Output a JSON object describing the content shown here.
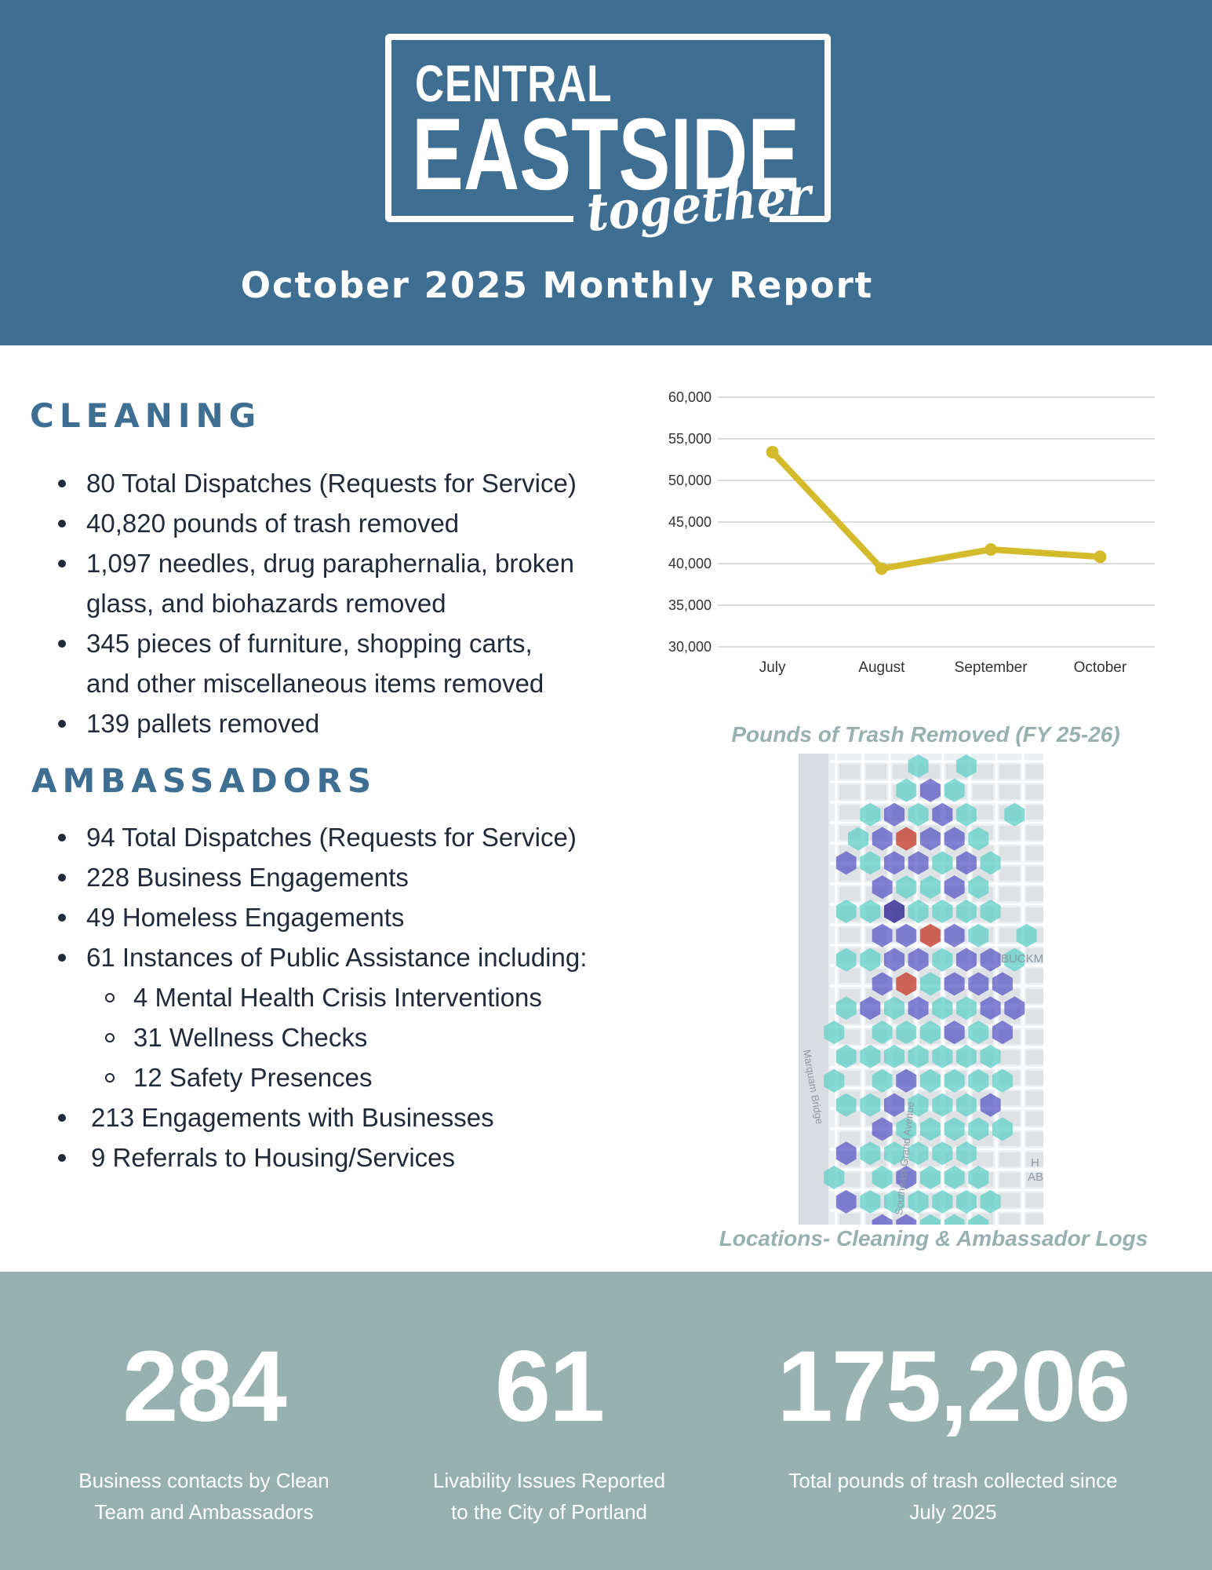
{
  "header": {
    "logo": {
      "line1": "CENTRAL",
      "line2": "EASTSIDE",
      "line3": "together"
    },
    "title": "October 2025 Monthly Report"
  },
  "cleaning": {
    "heading": "CLEANING",
    "items": [
      "80 Total Dispatches (Requests for Service)",
      "40,820 pounds of trash removed",
      "1,097 needles, drug paraphernalia, broken",
      "glass, and biohazards removed",
      "345 pieces of furniture, shopping carts,",
      "and other miscellaneous items removed",
      "139 pallets removed"
    ]
  },
  "ambassadors": {
    "heading": "AMBASSADORS",
    "items": [
      "94 Total Dispatches (Requests for Service)",
      "228 Business Engagements",
      "49 Homeless Engagements",
      "61 Instances of Public Assistance including:",
      "4 Mental Health Crisis Interventions",
      "31 Wellness Checks",
      "12 Safety Presences",
      "213 Engagements with Businesses",
      "9 Referrals to Housing/Services"
    ]
  },
  "chart_data": {
    "type": "line",
    "categories": [
      "July",
      "August",
      "September",
      "October"
    ],
    "values": [
      53400,
      39400,
      41700,
      40820
    ],
    "y_ticks": [
      "60,000",
      "55,000",
      "50,000",
      "45,000",
      "40,000",
      "35,000",
      "30,000"
    ],
    "ylim": [
      30000,
      60000
    ],
    "grid": true,
    "color": "#d4bb2c",
    "title": "Pounds of Trash Removed (FY 25-26)"
  },
  "map": {
    "caption": "Locations- Cleaning & Ambassador Logs",
    "labels": [
      "BUCKM",
      "Marquam Bridge",
      "Southeast Grand Avenue",
      "H",
      "AB"
    ],
    "colors": {
      "low": "#5fcfc7",
      "mid": "#5a58c4",
      "high": "#3b2f9a",
      "hot": "#c84a3a"
    }
  },
  "footer": {
    "stats": [
      {
        "value": "284",
        "label_line1": "Business contacts by  Clean",
        "label_line2": "Team and Ambassadors"
      },
      {
        "value": "61",
        "label_line1": "Livability Issues Reported",
        "label_line2": "to the City of Portland"
      },
      {
        "value": "175,206",
        "label_line1": "Total pounds of trash collected since",
        "label_line2": "July 2025"
      }
    ]
  },
  "colors": {
    "primary": "#3f6e93",
    "footer": "#97b0b0",
    "caption": "#97b0b0",
    "line": "#d4bb2c"
  }
}
